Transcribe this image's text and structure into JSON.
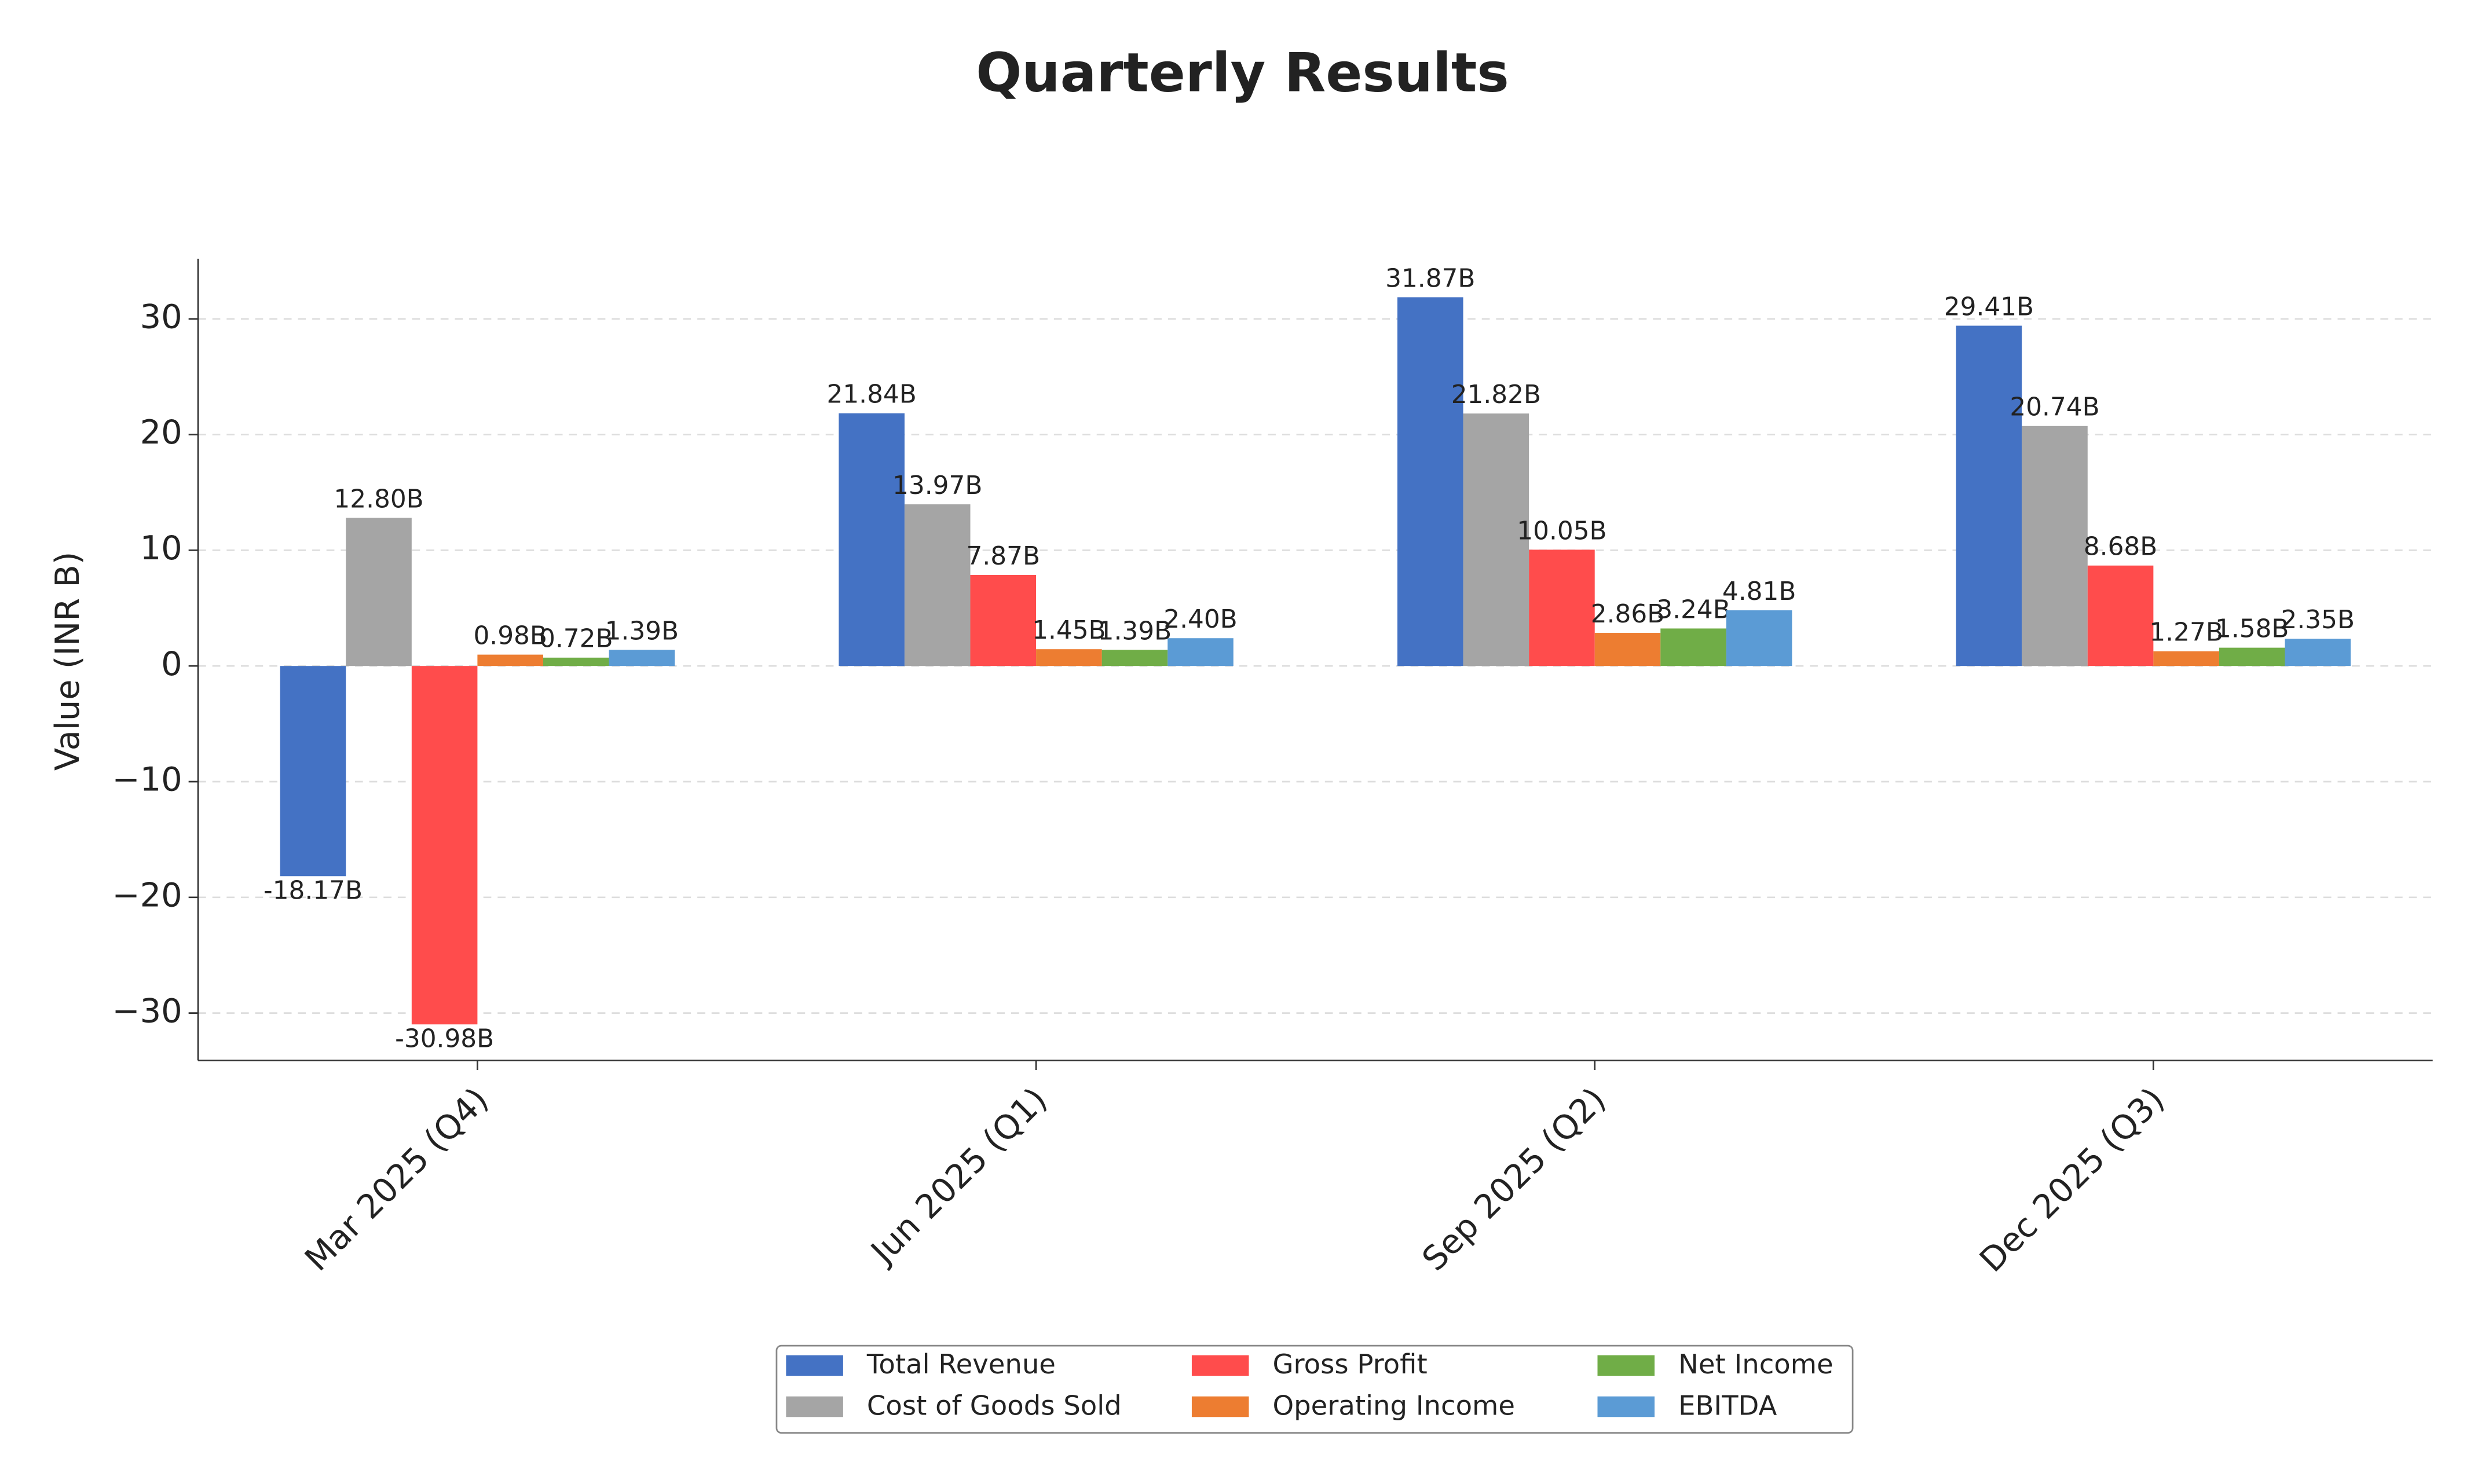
{
  "chart_data": {
    "type": "bar",
    "title": "Quarterly Results",
    "y_label": "Value (INR B)",
    "categories": [
      "Mar 2025 (Q4)",
      "Jun 2025 (Q1)",
      "Sep 2025 (Q2)",
      "Dec 2025 (Q3)"
    ],
    "series": [
      {
        "name": "Total Revenue",
        "color": "#4472c4",
        "values": [
          -18.17,
          21.84,
          31.87,
          29.41
        ],
        "value_labels": [
          "-18.17B",
          "21.84B",
          "31.87B",
          "29.41B"
        ]
      },
      {
        "name": "Cost of Goods Sold",
        "color": "#a5a5a5",
        "values": [
          12.8,
          13.97,
          21.82,
          20.74
        ],
        "value_labels": [
          "12.80B",
          "13.97B",
          "21.82B",
          "20.74B"
        ]
      },
      {
        "name": "Gross Profit",
        "color": "#ff4c4c",
        "values": [
          -30.98,
          7.87,
          10.05,
          8.68
        ],
        "value_labels": [
          "-30.98B",
          "7.87B",
          "10.05B",
          "8.68B"
        ]
      },
      {
        "name": "Operating Income",
        "color": "#ed7d31",
        "values": [
          0.98,
          1.45,
          2.86,
          1.27
        ],
        "value_labels": [
          "0.98B",
          "1.45B",
          "2.86B",
          "1.27B"
        ]
      },
      {
        "name": "Net Income",
        "color": "#70ad47",
        "values": [
          0.72,
          1.39,
          3.24,
          1.58
        ],
        "value_labels": [
          "0.72B",
          "1.39B",
          "3.24B",
          "1.58B"
        ]
      },
      {
        "name": "EBITDA",
        "color": "#5b9bd5",
        "values": [
          1.39,
          2.4,
          4.81,
          2.35
        ],
        "value_labels": [
          "1.39B",
          "2.40B",
          "4.81B",
          "2.35B"
        ]
      }
    ],
    "ylim": [
      -34.1,
      35.2
    ],
    "yticks": [
      {
        "value": -30,
        "label": "−30"
      },
      {
        "value": -20,
        "label": "−20"
      },
      {
        "value": -10,
        "label": "−10"
      },
      0,
      10,
      20,
      30
    ],
    "grid": true,
    "legend": "bottom"
  }
}
